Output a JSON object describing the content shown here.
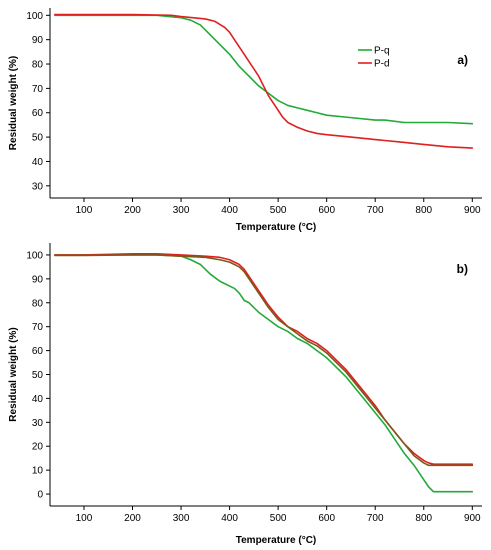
{
  "chart_data": [
    {
      "type": "line",
      "panel_label": "a)",
      "xlabel": "Temperature (°C)",
      "ylabel": "Residual weight (%)",
      "xlim": [
        30,
        920
      ],
      "ylim": [
        25,
        103
      ],
      "x_ticks": [
        100,
        200,
        300,
        400,
        500,
        600,
        700,
        800,
        900
      ],
      "y_ticks": [
        30,
        40,
        50,
        60,
        70,
        80,
        90,
        100
      ],
      "legend_position": "top-right",
      "series": [
        {
          "name": "P-q",
          "color": "#22aa3a",
          "x": [
            40,
            100,
            200,
            250,
            300,
            320,
            340,
            360,
            380,
            400,
            420,
            440,
            460,
            480,
            500,
            520,
            540,
            560,
            580,
            600,
            650,
            700,
            720,
            760,
            800,
            850,
            900
          ],
          "y": [
            100,
            100,
            100,
            100,
            99,
            98,
            96,
            92,
            88,
            84,
            79,
            75,
            71,
            68,
            65,
            63,
            62,
            61,
            60,
            59,
            58,
            57,
            57,
            56,
            56,
            56,
            55.5
          ]
        },
        {
          "name": "P-d",
          "color": "#e02020",
          "x": [
            40,
            100,
            200,
            280,
            300,
            350,
            370,
            390,
            400,
            410,
            420,
            440,
            460,
            480,
            500,
            510,
            520,
            540,
            560,
            580,
            600,
            650,
            700,
            750,
            800,
            850,
            900
          ],
          "y": [
            100.3,
            100.3,
            100.3,
            100,
            99.5,
            98.5,
            97.5,
            95,
            93,
            90,
            87,
            81,
            75,
            67,
            61,
            58,
            56,
            54,
            52.5,
            51.5,
            51,
            50,
            49,
            48,
            47,
            46,
            45.5
          ]
        }
      ]
    },
    {
      "type": "line",
      "panel_label": "b)",
      "xlabel": "Temperature (°C)",
      "ylabel": "Residual weight (%)",
      "xlim": [
        30,
        920
      ],
      "ylim": [
        -5,
        105
      ],
      "x_ticks": [
        100,
        200,
        300,
        400,
        500,
        600,
        700,
        800,
        900
      ],
      "y_ticks": [
        0,
        10,
        20,
        30,
        40,
        50,
        60,
        70,
        80,
        90,
        100
      ],
      "series": [
        {
          "color": "#22aa3a",
          "x": [
            40,
            100,
            200,
            250,
            300,
            320,
            340,
            360,
            380,
            400,
            410,
            420,
            430,
            440,
            460,
            480,
            500,
            520,
            540,
            560,
            580,
            600,
            620,
            640,
            660,
            680,
            700,
            720,
            740,
            760,
            780,
            800,
            810,
            820,
            850,
            900
          ],
          "y": [
            100,
            100,
            100,
            100,
            99.5,
            98,
            96,
            92,
            89,
            87,
            86,
            84,
            81,
            80,
            76,
            73,
            70,
            68,
            65,
            63,
            60,
            57,
            53,
            49,
            44,
            39,
            34,
            29,
            23,
            17,
            12,
            6,
            3,
            1,
            1,
            1
          ]
        },
        {
          "color": "#e02020",
          "x": [
            40,
            100,
            200,
            250,
            300,
            350,
            380,
            400,
            410,
            420,
            430,
            440,
            460,
            480,
            500,
            520,
            540,
            560,
            580,
            600,
            620,
            640,
            660,
            680,
            700,
            720,
            740,
            760,
            780,
            800,
            810,
            820,
            850,
            900
          ],
          "y": [
            100,
            100,
            100.5,
            100.5,
            100,
            99.5,
            99,
            98,
            97,
            96,
            94,
            91,
            85,
            79,
            74,
            70,
            68,
            65,
            63,
            60,
            56,
            52,
            47,
            42,
            37,
            31,
            26,
            21,
            17,
            14,
            13,
            12.5,
            12.5,
            12.5
          ]
        },
        {
          "color": "#7a5a1a",
          "x": [
            40,
            100,
            200,
            250,
            300,
            350,
            380,
            400,
            410,
            420,
            430,
            440,
            460,
            480,
            500,
            520,
            540,
            560,
            580,
            600,
            620,
            640,
            660,
            680,
            700,
            720,
            740,
            760,
            780,
            800,
            810,
            820,
            850,
            900
          ],
          "y": [
            99.8,
            99.8,
            100,
            100,
            99.5,
            99,
            98,
            97,
            96,
            95,
            93,
            90,
            84,
            78,
            73,
            70,
            67,
            64,
            62,
            59,
            55,
            51,
            46,
            41,
            36,
            31,
            26,
            21,
            16,
            13,
            12,
            12,
            12,
            12
          ]
        }
      ]
    }
  ]
}
